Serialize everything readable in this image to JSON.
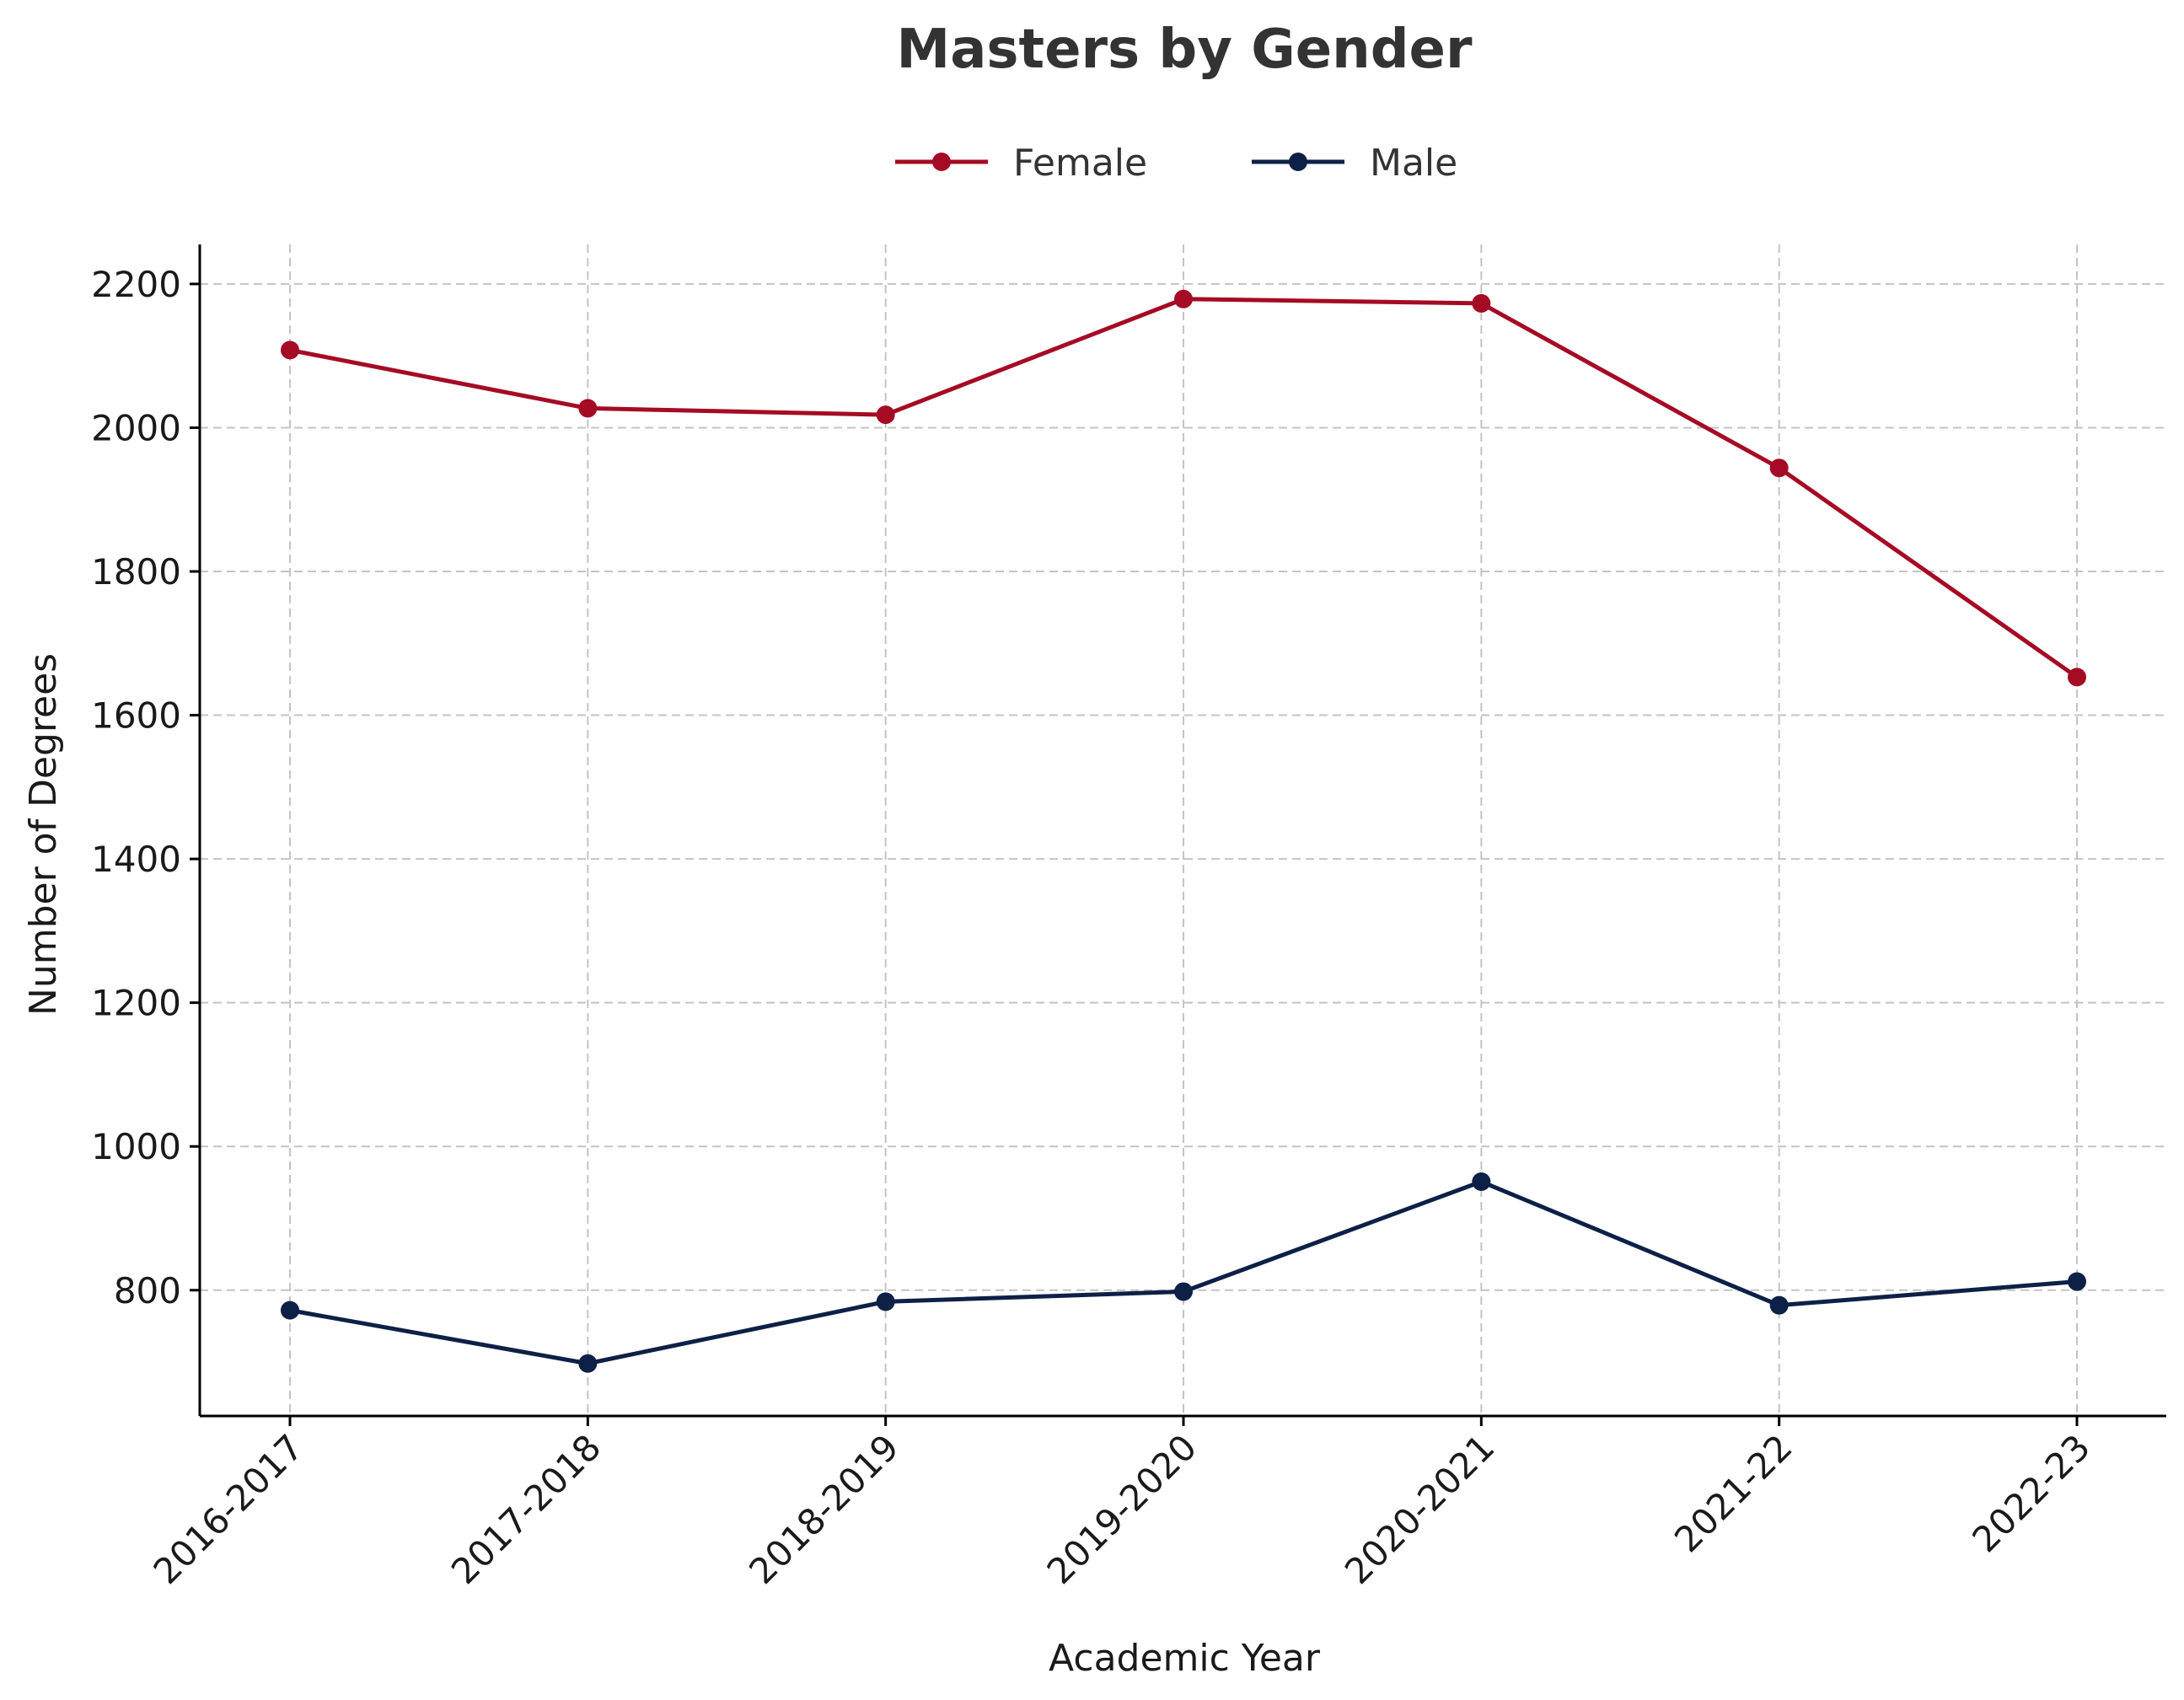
{
  "chart_data": {
    "type": "line",
    "title": "Masters by Gender",
    "xlabel": "Academic Year",
    "ylabel": "Number of Degrees",
    "categories": [
      "2016-2017",
      "2017-2018",
      "2018-2019",
      "2019-2020",
      "2020-2021",
      "2021-22",
      "2022-23"
    ],
    "ylim": [
      625,
      2255
    ],
    "yticks": [
      800,
      1000,
      1200,
      1400,
      1600,
      1800,
      2000,
      2200
    ],
    "grid": true,
    "legend_position": "top-center",
    "series": [
      {
        "name": "Female",
        "color": "#a50b24",
        "values": [
          2108,
          2027,
          2018,
          2179,
          2173,
          1944,
          1653
        ]
      },
      {
        "name": "Male",
        "color": "#0d2046",
        "values": [
          772,
          698,
          784,
          798,
          951,
          779,
          812
        ]
      }
    ]
  }
}
